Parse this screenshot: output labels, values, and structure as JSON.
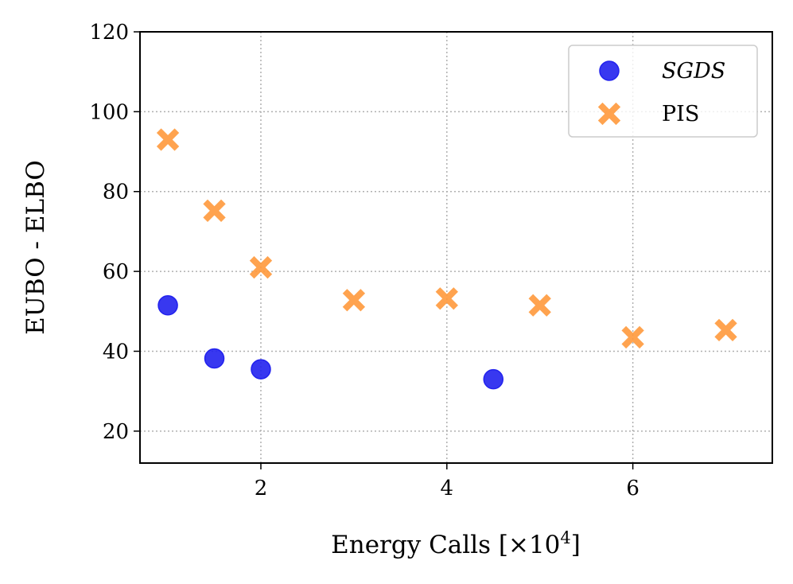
{
  "chart_data": {
    "type": "scatter",
    "title": "",
    "xlabel": "Energy Calls [×10",
    "xlabel_sup": "4",
    "xlabel_end": "]",
    "ylabel": "EUBO - ELBO",
    "xlim": [
      0.7,
      7.5
    ],
    "ylim": [
      12,
      120
    ],
    "xticks": [
      2,
      4,
      6
    ],
    "yticks": [
      20,
      40,
      60,
      80,
      100,
      120
    ],
    "xtick_labels": [
      "2",
      "4",
      "6"
    ],
    "ytick_labels": [
      "20",
      "40",
      "60",
      "80",
      "100",
      "120"
    ],
    "grid": true,
    "legend_position": "top-right",
    "series": [
      {
        "name": "SGDS",
        "marker": "circle",
        "color": "#2222ee",
        "x": [
          1.0,
          1.5,
          2.0,
          4.5
        ],
        "y": [
          51.5,
          38.2,
          35.5,
          33.0
        ]
      },
      {
        "name": "PIS",
        "marker": "x",
        "color": "#ff9a3c",
        "x": [
          1.0,
          1.5,
          2.0,
          3.0,
          4.0,
          5.0,
          6.0,
          7.0
        ],
        "y": [
          93.0,
          75.2,
          61.0,
          52.8,
          53.2,
          51.5,
          43.5,
          45.3
        ]
      }
    ]
  }
}
